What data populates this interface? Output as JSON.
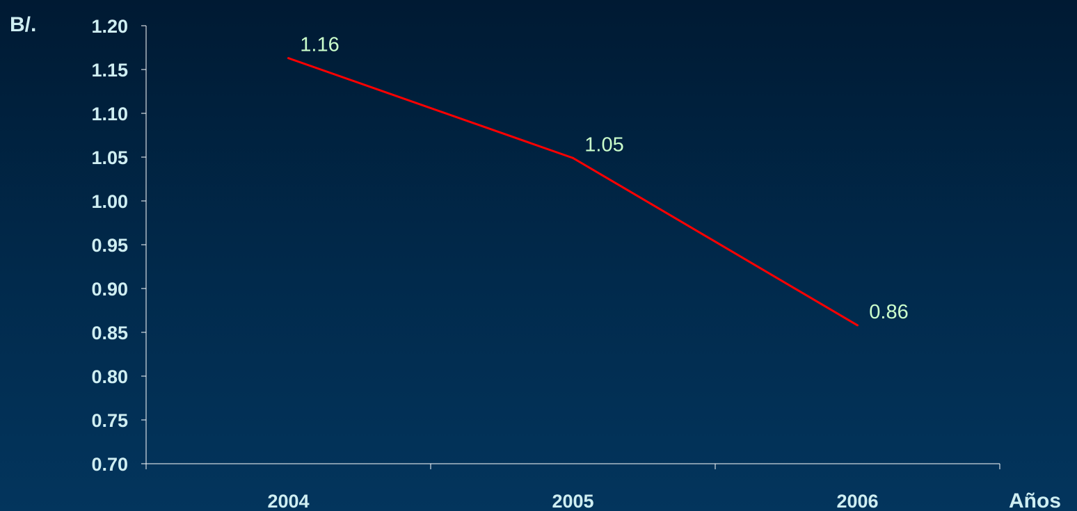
{
  "chart_data": {
    "type": "line",
    "title": "",
    "xlabel": "Años",
    "ylabel": "B/.",
    "categories": [
      "2004",
      "2005",
      "2006"
    ],
    "series": [
      {
        "values": [
          1.163,
          1.049,
          0.858
        ],
        "labels": [
          "1.16",
          "1.05",
          "0.86"
        ]
      }
    ],
    "ylim": [
      0.7,
      1.2
    ],
    "yticks": [
      "0.70",
      "0.75",
      "0.80",
      "0.85",
      "0.90",
      "0.95",
      "1.00",
      "1.05",
      "1.10",
      "1.15",
      "1.20"
    ],
    "grid": false,
    "legend": "none"
  },
  "colors": {
    "axis_text": "#cfeef2",
    "line": "#ff0000",
    "data_label": "#ccffcc",
    "axis_line": "#ffffff"
  }
}
